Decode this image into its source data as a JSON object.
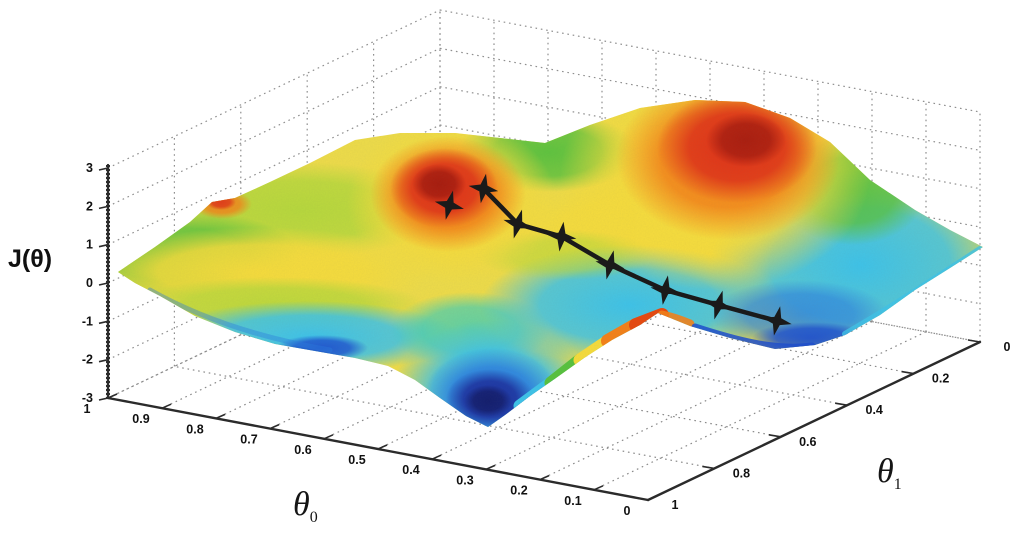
{
  "figure": {
    "kind": "matlab-style 3d surface plot",
    "background": "#ffffff",
    "labels": {
      "z_axis": "J(θ)",
      "x_axis_main": "θ",
      "x_axis_sub": "0",
      "y_axis_main": "θ",
      "y_axis_sub": "1"
    }
  },
  "chart_data": {
    "type": "surface",
    "title": "",
    "xlabel": "θ0",
    "ylabel": "θ1",
    "zlabel": "J(θ)",
    "x_range": [
      0,
      1
    ],
    "y_range": [
      0,
      1
    ],
    "z_range": [
      -3,
      3
    ],
    "theta0_tick_values": [
      1,
      0.9,
      0.8,
      0.7,
      0.6,
      0.5,
      0.4,
      0.3,
      0.2,
      0.1,
      0
    ],
    "theta0_tick_labels": [
      "1",
      "0.9",
      "0.8",
      "0.7",
      "0.6",
      "0.5",
      "0.4",
      "0.3",
      "0.2",
      "0.1",
      "0"
    ],
    "theta1_tick_values": [
      1,
      0.8,
      0.6,
      0.4,
      0.2,
      0
    ],
    "theta1_tick_labels": [
      "1",
      "0.8",
      "0.6",
      "0.4",
      "0.2",
      "0"
    ],
    "z_tick_values": [
      3,
      2,
      1,
      0,
      -1,
      -2,
      -3
    ],
    "z_tick_labels": [
      "3",
      "2",
      "1",
      "0",
      "-1",
      "-2",
      "-3"
    ],
    "grid": "dotted",
    "legend": "none",
    "colormap": "jet",
    "surface_description": "Non-convex cost surface J(θ0,θ1): red peak near (θ0≈0.55,θ1≈0.65,J≈2.6), large red peak near (θ0≈0.35,θ1≈0.15,J≈2.8), deep blue minimum near (θ0≈0.3,θ1≈0.85,J≈-2.4), cyan basins front-left and right, green saddle between peaks",
    "descent_path": {
      "marker": "4-point-star",
      "line_color": "#1a1a1a",
      "first_point_disconnected": true,
      "points_theta0_theta1_J": [
        [
          0.54,
          0.72,
          2.1
        ],
        [
          0.52,
          0.65,
          2.3
        ],
        [
          0.45,
          0.66,
          1.6
        ],
        [
          0.4,
          0.61,
          1.2
        ],
        [
          0.31,
          0.61,
          0.7
        ],
        [
          0.22,
          0.59,
          0.2
        ],
        [
          0.14,
          0.56,
          -0.1
        ],
        [
          0.05,
          0.53,
          -0.4
        ]
      ]
    }
  }
}
